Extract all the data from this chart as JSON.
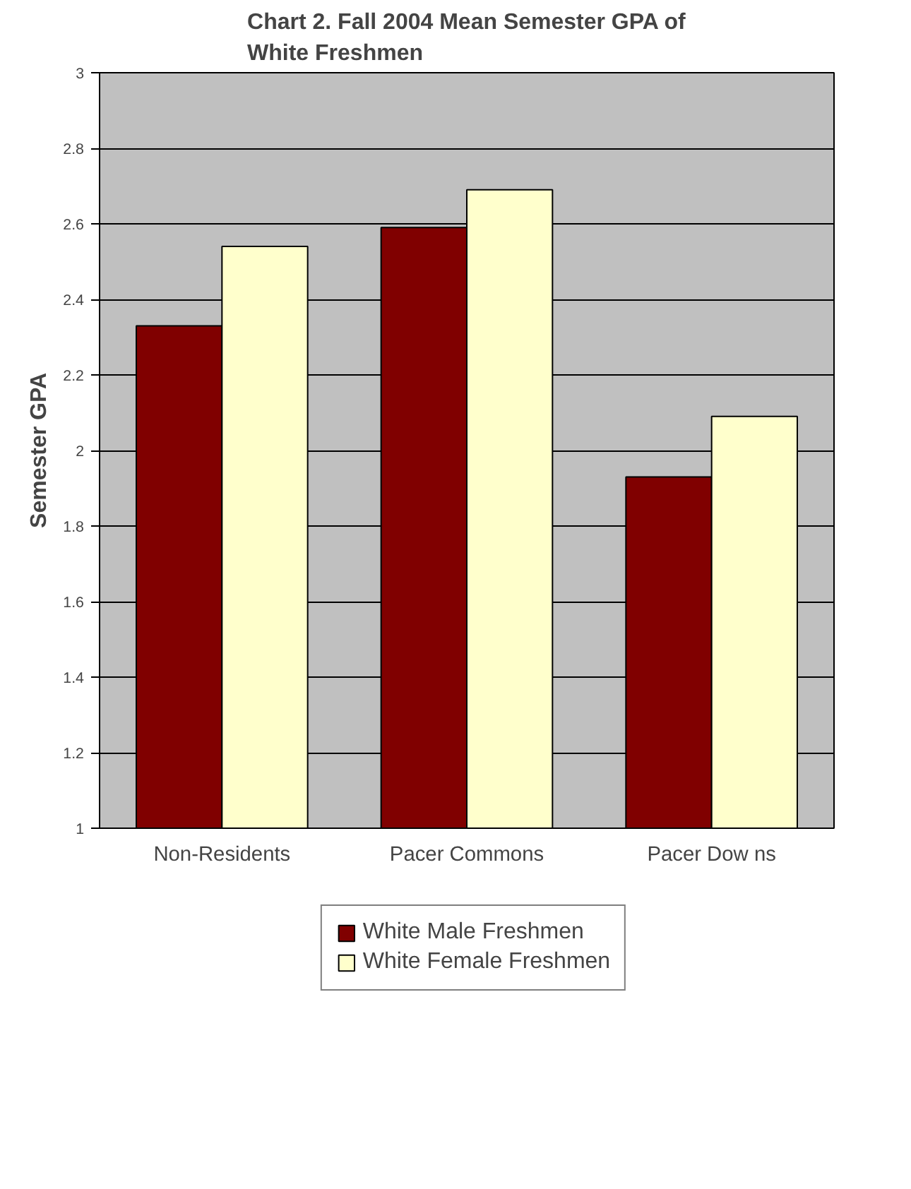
{
  "chart_data": {
    "type": "bar",
    "title": "Chart 2. Fall 2004 Mean Semester GPA of White Freshmen",
    "ylabel": "Semester GPA",
    "categories": [
      "Non-Residents",
      "Pacer Commons",
      "Pacer Dow ns"
    ],
    "series": [
      {
        "name": "White Male Freshmen",
        "color": "#800000",
        "values": [
          2.33,
          2.59,
          1.93
        ]
      },
      {
        "name": "White Female Freshmen",
        "color": "#ffffcc",
        "values": [
          2.54,
          2.69,
          2.09
        ]
      }
    ],
    "ylim": [
      1,
      3
    ],
    "yticks": [
      1,
      1.2,
      1.4,
      1.6,
      1.8,
      2,
      2.2,
      2.4,
      2.6,
      2.8,
      3
    ],
    "grid": "y",
    "legend": "bottom"
  }
}
